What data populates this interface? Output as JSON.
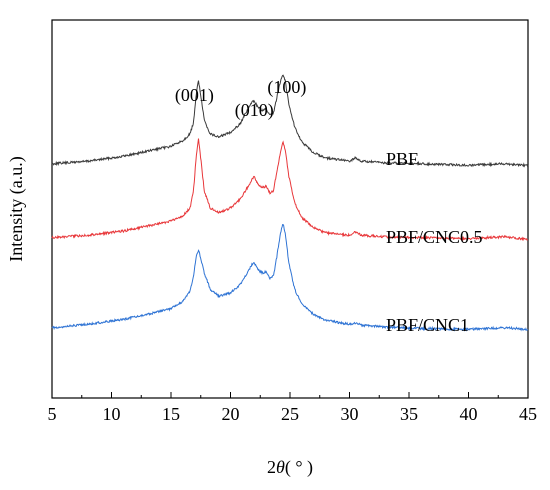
{
  "chart_data": {
    "type": "line",
    "title": "",
    "xlabel_prefix": "2",
    "xlabel_theta": "θ",
    "xlabel_suffix": "( ° )",
    "ylabel": "Intensity (a.u.)",
    "xlim": [
      5,
      45
    ],
    "x_ticks": [
      5,
      10,
      15,
      20,
      25,
      30,
      35,
      40,
      45
    ],
    "x_tick_labels": [
      "5",
      "10",
      "15",
      "20",
      "25",
      "30",
      "35",
      "40",
      "45"
    ],
    "y_ticks_shown": false,
    "grid": false,
    "legend": "inline labels at right",
    "peak_annotations": [
      {
        "text": "(001)",
        "x": 17.3
      },
      {
        "text": "(010)",
        "x": 22.0
      },
      {
        "text": "(100)",
        "x": 24.4
      }
    ],
    "series": [
      {
        "name": "PBF",
        "color": "#3a3a3a",
        "x": [
          5,
          8,
          11,
          13,
          15,
          16,
          16.6,
          16.9,
          17.1,
          17.3,
          17.5,
          17.8,
          18.3,
          19,
          20,
          20.8,
          21.4,
          21.8,
          22.0,
          22.3,
          22.7,
          23.0,
          23.3,
          23.6,
          23.9,
          24.2,
          24.4,
          24.6,
          24.9,
          25.4,
          26,
          27,
          28,
          30,
          30.5,
          31,
          33,
          36,
          40,
          43,
          45
        ],
        "y": [
          1.0,
          1.3,
          1.9,
          2.5,
          3.1,
          3.8,
          4.6,
          6.0,
          9.0,
          11.2,
          9.2,
          6.2,
          4.6,
          4.2,
          4.8,
          5.8,
          7.4,
          8.4,
          8.6,
          7.8,
          7.4,
          7.6,
          6.8,
          7.0,
          9.0,
          11.0,
          11.8,
          11.0,
          8.2,
          5.4,
          3.6,
          2.3,
          1.7,
          1.3,
          1.7,
          1.3,
          1.1,
          1.0,
          0.8,
          1.0,
          0.8
        ]
      },
      {
        "name": "PBF/CNC0.5",
        "color": "#e8373a",
        "x": [
          5,
          8,
          11,
          13,
          15,
          16,
          16.6,
          16.9,
          17.1,
          17.3,
          17.5,
          17.8,
          18.3,
          19,
          20,
          20.8,
          21.4,
          21.8,
          22.0,
          22.3,
          22.7,
          23.0,
          23.3,
          23.6,
          23.9,
          24.2,
          24.4,
          24.6,
          24.9,
          25.4,
          26,
          27,
          28,
          30,
          30.5,
          31,
          33,
          36,
          40,
          43,
          45
        ],
        "y": [
          1.0,
          1.3,
          1.8,
          2.4,
          3.0,
          3.6,
          4.6,
          6.8,
          10.4,
          13.0,
          10.6,
          6.6,
          4.6,
          4.0,
          4.6,
          5.6,
          7.0,
          8.0,
          8.4,
          7.4,
          7.0,
          7.2,
          6.4,
          6.6,
          9.0,
          11.4,
          12.6,
          11.6,
          8.4,
          5.2,
          3.4,
          2.2,
          1.6,
          1.3,
          1.7,
          1.3,
          1.1,
          1.0,
          0.9,
          1.1,
          0.8
        ]
      },
      {
        "name": "PBF/CNC1",
        "color": "#2e73d4",
        "x": [
          5,
          8,
          11,
          13,
          15,
          16,
          16.6,
          16.9,
          17.1,
          17.3,
          17.5,
          17.8,
          18.3,
          19,
          20,
          20.8,
          21.4,
          21.8,
          22.0,
          22.3,
          22.7,
          23.0,
          23.3,
          23.6,
          23.9,
          24.2,
          24.4,
          24.6,
          24.9,
          25.4,
          26,
          27,
          28,
          30,
          30.5,
          31,
          33,
          36,
          40,
          43,
          45
        ],
        "y": [
          1.0,
          1.4,
          2.0,
          2.6,
          3.3,
          4.2,
          5.4,
          7.2,
          9.4,
          10.4,
          9.4,
          7.6,
          5.6,
          4.8,
          5.2,
          6.2,
          7.6,
          8.6,
          8.8,
          8.0,
          7.6,
          7.8,
          7.0,
          7.2,
          9.6,
          12.4,
          13.6,
          12.4,
          8.8,
          5.6,
          3.8,
          2.6,
          1.9,
          1.4,
          1.6,
          1.3,
          1.1,
          0.9,
          0.8,
          1.0,
          0.8
        ]
      }
    ]
  }
}
